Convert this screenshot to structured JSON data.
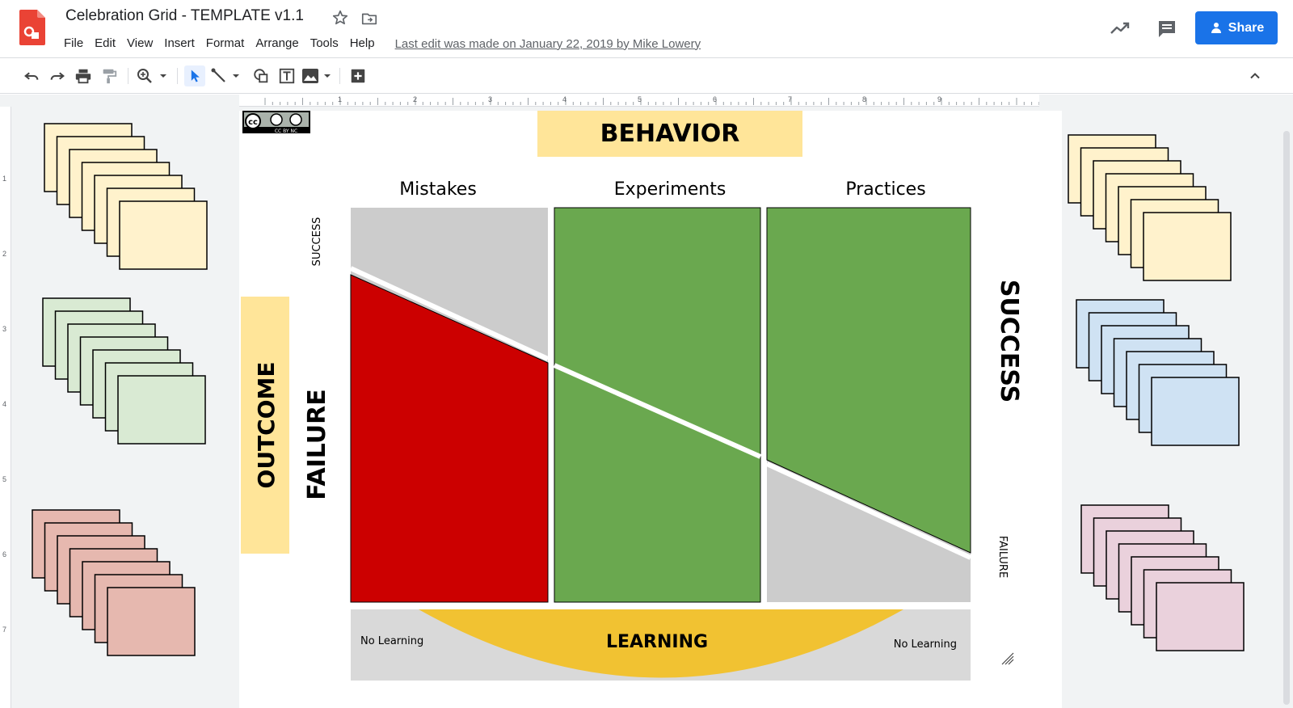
{
  "header": {
    "doc_title": "Celebration Grid - TEMPLATE v1.1",
    "last_edit": "Last edit was made on January 22, 2019 by Mike Lowery",
    "share_label": "Share",
    "menu": [
      "File",
      "Edit",
      "View",
      "Insert",
      "Format",
      "Arrange",
      "Tools",
      "Help"
    ]
  },
  "toolbar": {
    "icons": [
      "undo-icon",
      "redo-icon",
      "print-icon",
      "paint-format-icon",
      "zoom-icon",
      "select-icon",
      "line-icon",
      "shape-icon",
      "text-box-icon",
      "image-icon",
      "new-comment-icon",
      "collapse-icon"
    ]
  },
  "ruler": {
    "h_marks": [
      "1",
      "2",
      "3",
      "4",
      "5",
      "6",
      "7",
      "8",
      "9"
    ],
    "v_marks": [
      "1",
      "2",
      "3",
      "4",
      "5",
      "6",
      "7"
    ]
  },
  "slide": {
    "behavior_label": "BEHAVIOR",
    "outcome_label": "OUTCOME",
    "columns": [
      "Mistakes",
      "Experiments",
      "Practices"
    ],
    "success_small": "SUCCESS",
    "failure_big": "FAILURE",
    "success_big": "SUCCESS",
    "failure_small": "FAILURE",
    "learning_label": "LEARNING",
    "no_learning_left": "No Learning",
    "no_learning_right": "No Learning",
    "license_badge": "CC BY NC"
  },
  "sticky_notes": {
    "left_yellow": "#fff2cc",
    "left_green": "#d9ead3",
    "left_red": "#e6b8af",
    "right_yellow": "#fff2cc",
    "right_blue": "#cfe2f3",
    "right_pink": "#ead1dc"
  },
  "colors": {
    "accent": "#1a73e8",
    "label_bg": "#ffe599",
    "green": "#6aa84f",
    "red": "#cc0000",
    "gray": "#cccccc",
    "learning": "#f1c232"
  }
}
